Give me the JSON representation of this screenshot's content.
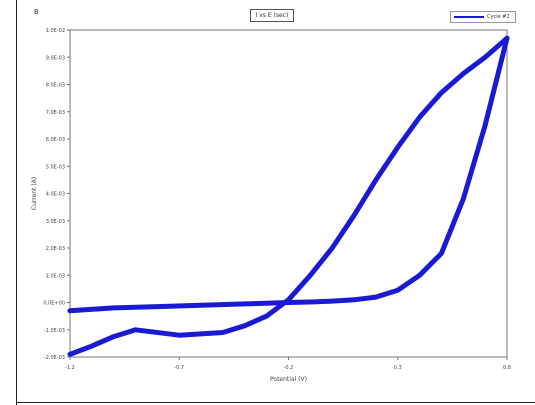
{
  "panel": {
    "label": "B"
  },
  "title": "I vs E (sec)",
  "legend": {
    "entry": "Cycle #2"
  },
  "chart_data": {
    "type": "line",
    "title": "I vs E (sec)",
    "xlabel": "Potential (V)",
    "ylabel": "Current (A)",
    "xlim": [
      -1.2,
      0.8
    ],
    "ylim": [
      -2.0,
      10.0
    ],
    "x_ticks": [
      "-1.2",
      "-0.7",
      "-0.2",
      "0.3",
      "0.8"
    ],
    "y_ticks": [
      "-2.0E-03",
      "-1.0E-03",
      "0.0E+00",
      "1.0E-03",
      "2.0E-03",
      "3.0E-03",
      "4.0E-03",
      "5.0E-03",
      "6.0E-03",
      "7.0E-03",
      "8.0E-03",
      "9.0E-03",
      "1.0E-02"
    ],
    "grid": false,
    "legend_position": "top-right",
    "color": "#1a1ad4",
    "series": [
      {
        "name": "Cycle #2",
        "forward": {
          "x": [
            -1.2,
            -1.0,
            -0.8,
            -0.6,
            -0.4,
            -0.2,
            -0.1,
            0.0,
            0.1,
            0.2,
            0.3,
            0.4,
            0.5,
            0.6,
            0.7,
            0.8
          ],
          "y": [
            -0.3,
            -0.2,
            -0.15,
            -0.1,
            -0.05,
            0.0,
            0.02,
            0.05,
            0.1,
            0.2,
            0.45,
            1.0,
            1.8,
            3.8,
            6.5,
            9.7
          ]
        },
        "reverse": {
          "x": [
            0.8,
            0.7,
            0.6,
            0.5,
            0.4,
            0.3,
            0.2,
            0.1,
            0.0,
            -0.1,
            -0.2,
            -0.3,
            -0.4,
            -0.5,
            -0.7,
            -0.9,
            -1.0,
            -1.1,
            -1.2
          ],
          "y": [
            9.7,
            9.0,
            8.4,
            7.7,
            6.8,
            5.7,
            4.5,
            3.2,
            2.0,
            1.0,
            0.1,
            -0.5,
            -0.85,
            -1.1,
            -1.2,
            -1.0,
            -1.25,
            -1.6,
            -1.9
          ]
        }
      }
    ]
  }
}
